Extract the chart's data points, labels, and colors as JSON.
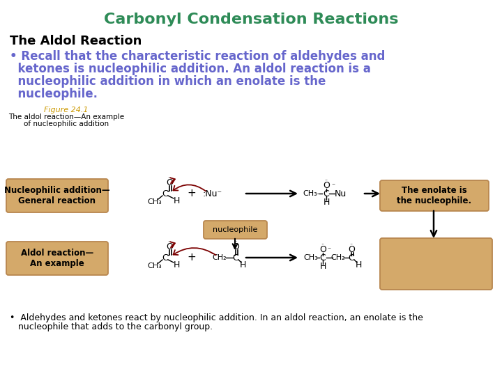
{
  "title": "Carbonyl Condensation Reactions",
  "title_color": "#2E8B57",
  "title_fontsize": 16,
  "subtitle": "The Aldol Reaction",
  "subtitle_fontsize": 13,
  "subtitle_color": "#000000",
  "bullet1_line1": "• Recall that the characteristic reaction of aldehydes and",
  "bullet1_line2": "  ketones is nucleophilic addition. An aldol reaction is a",
  "bullet1_line3": "  nucleophilic addition in which an enolate is the",
  "bullet1_line4": "  nucleophile.",
  "bullet1_color": "#6666CC",
  "bullet1_fontsize": 12,
  "figure_label": "Figure 24.1",
  "figure_caption_line1": "The aldol reaction—An example",
  "figure_caption_line2": "of nucleophilic addition",
  "figure_label_color": "#CC9900",
  "figure_caption_color": "#000000",
  "box_facecolor": "#D4A96A",
  "box_edgecolor": "#B8864E",
  "curly_arrow_color": "#7B0000",
  "box1_text": "Nucleophilic addition—\nGeneral reaction",
  "box2_text": "Aldol reaction—\nAn example",
  "box3_text": "The enolate is\nthe nucleophile.",
  "box_nucleophile_text": "nucleophile",
  "bullet2_line1": "•  Aldehydes and ketones react by nucleophilic addition. In an aldol reaction, an enolate is the",
  "bullet2_line2": "   nucleophile that adds to the carbonyl group.",
  "bullet2_fontsize": 9,
  "bg_color": "#FFFFFF"
}
